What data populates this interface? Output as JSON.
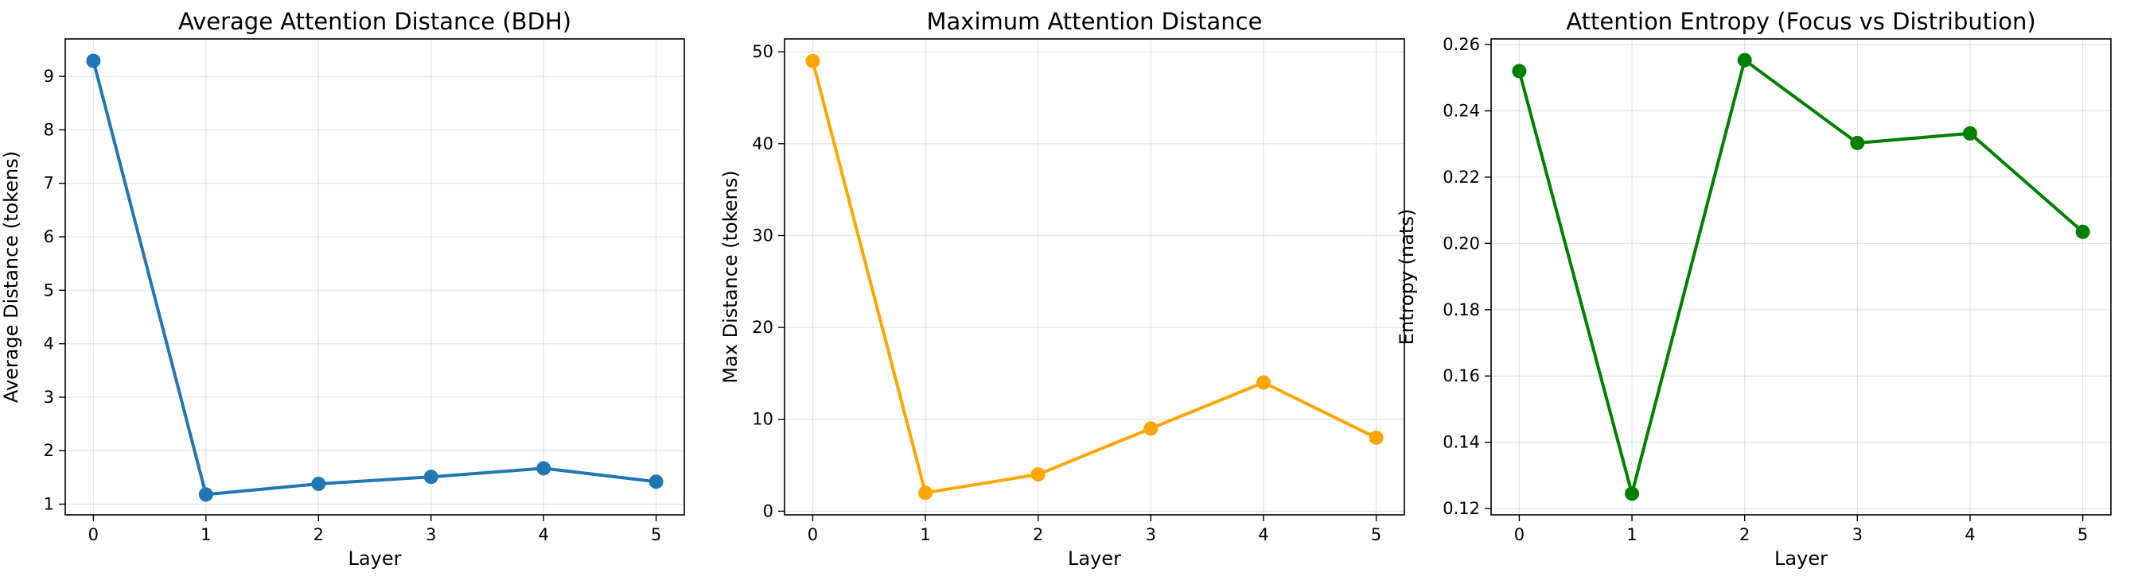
{
  "chart_data": [
    {
      "type": "line",
      "title": "Average Attention Distance (BDH)",
      "xlabel": "Layer",
      "ylabel": "Average Distance (tokens)",
      "x": [
        0,
        1,
        2,
        3,
        4,
        5
      ],
      "series": [
        {
          "values": [
            9.29,
            1.18,
            1.38,
            1.51,
            1.67,
            1.42
          ],
          "color": "#1f77b4"
        }
      ],
      "xlim": [
        -0.25,
        5.25
      ],
      "ylim": [
        0.8,
        9.7
      ],
      "xticks": [
        "0",
        "1",
        "2",
        "3",
        "4",
        "5"
      ],
      "yticks": [
        "1",
        "2",
        "3",
        "4",
        "5",
        "6",
        "7",
        "8",
        "9"
      ],
      "grid": true
    },
    {
      "type": "line",
      "title": "Maximum Attention Distance",
      "xlabel": "Layer",
      "ylabel": "Max Distance (tokens)",
      "x": [
        0,
        1,
        2,
        3,
        4,
        5
      ],
      "series": [
        {
          "values": [
            49,
            2,
            4,
            9,
            14,
            8
          ],
          "color": "#ffa500"
        }
      ],
      "xlim": [
        -0.25,
        5.25
      ],
      "ylim": [
        -0.4,
        51.4
      ],
      "xticks": [
        "0",
        "1",
        "2",
        "3",
        "4",
        "5"
      ],
      "yticks": [
        "0",
        "10",
        "20",
        "30",
        "40",
        "50"
      ],
      "grid": true
    },
    {
      "type": "line",
      "title": "Attention Entropy (Focus vs Distribution)",
      "xlabel": "Layer",
      "ylabel": "Entropy (nats)",
      "x": [
        0,
        1,
        2,
        3,
        4,
        5
      ],
      "series": [
        {
          "values": [
            0.252,
            0.1245,
            0.2553,
            0.2303,
            0.2332,
            0.2035
          ],
          "color": "#008000"
        }
      ],
      "xlim": [
        -0.25,
        5.25
      ],
      "ylim": [
        0.1181,
        0.2617
      ],
      "xticks": [
        "0",
        "1",
        "2",
        "3",
        "4",
        "5"
      ],
      "yticks": [
        "0.12",
        "0.14",
        "0.16",
        "0.18",
        "0.20",
        "0.22",
        "0.24",
        "0.26"
      ],
      "grid": true
    }
  ]
}
